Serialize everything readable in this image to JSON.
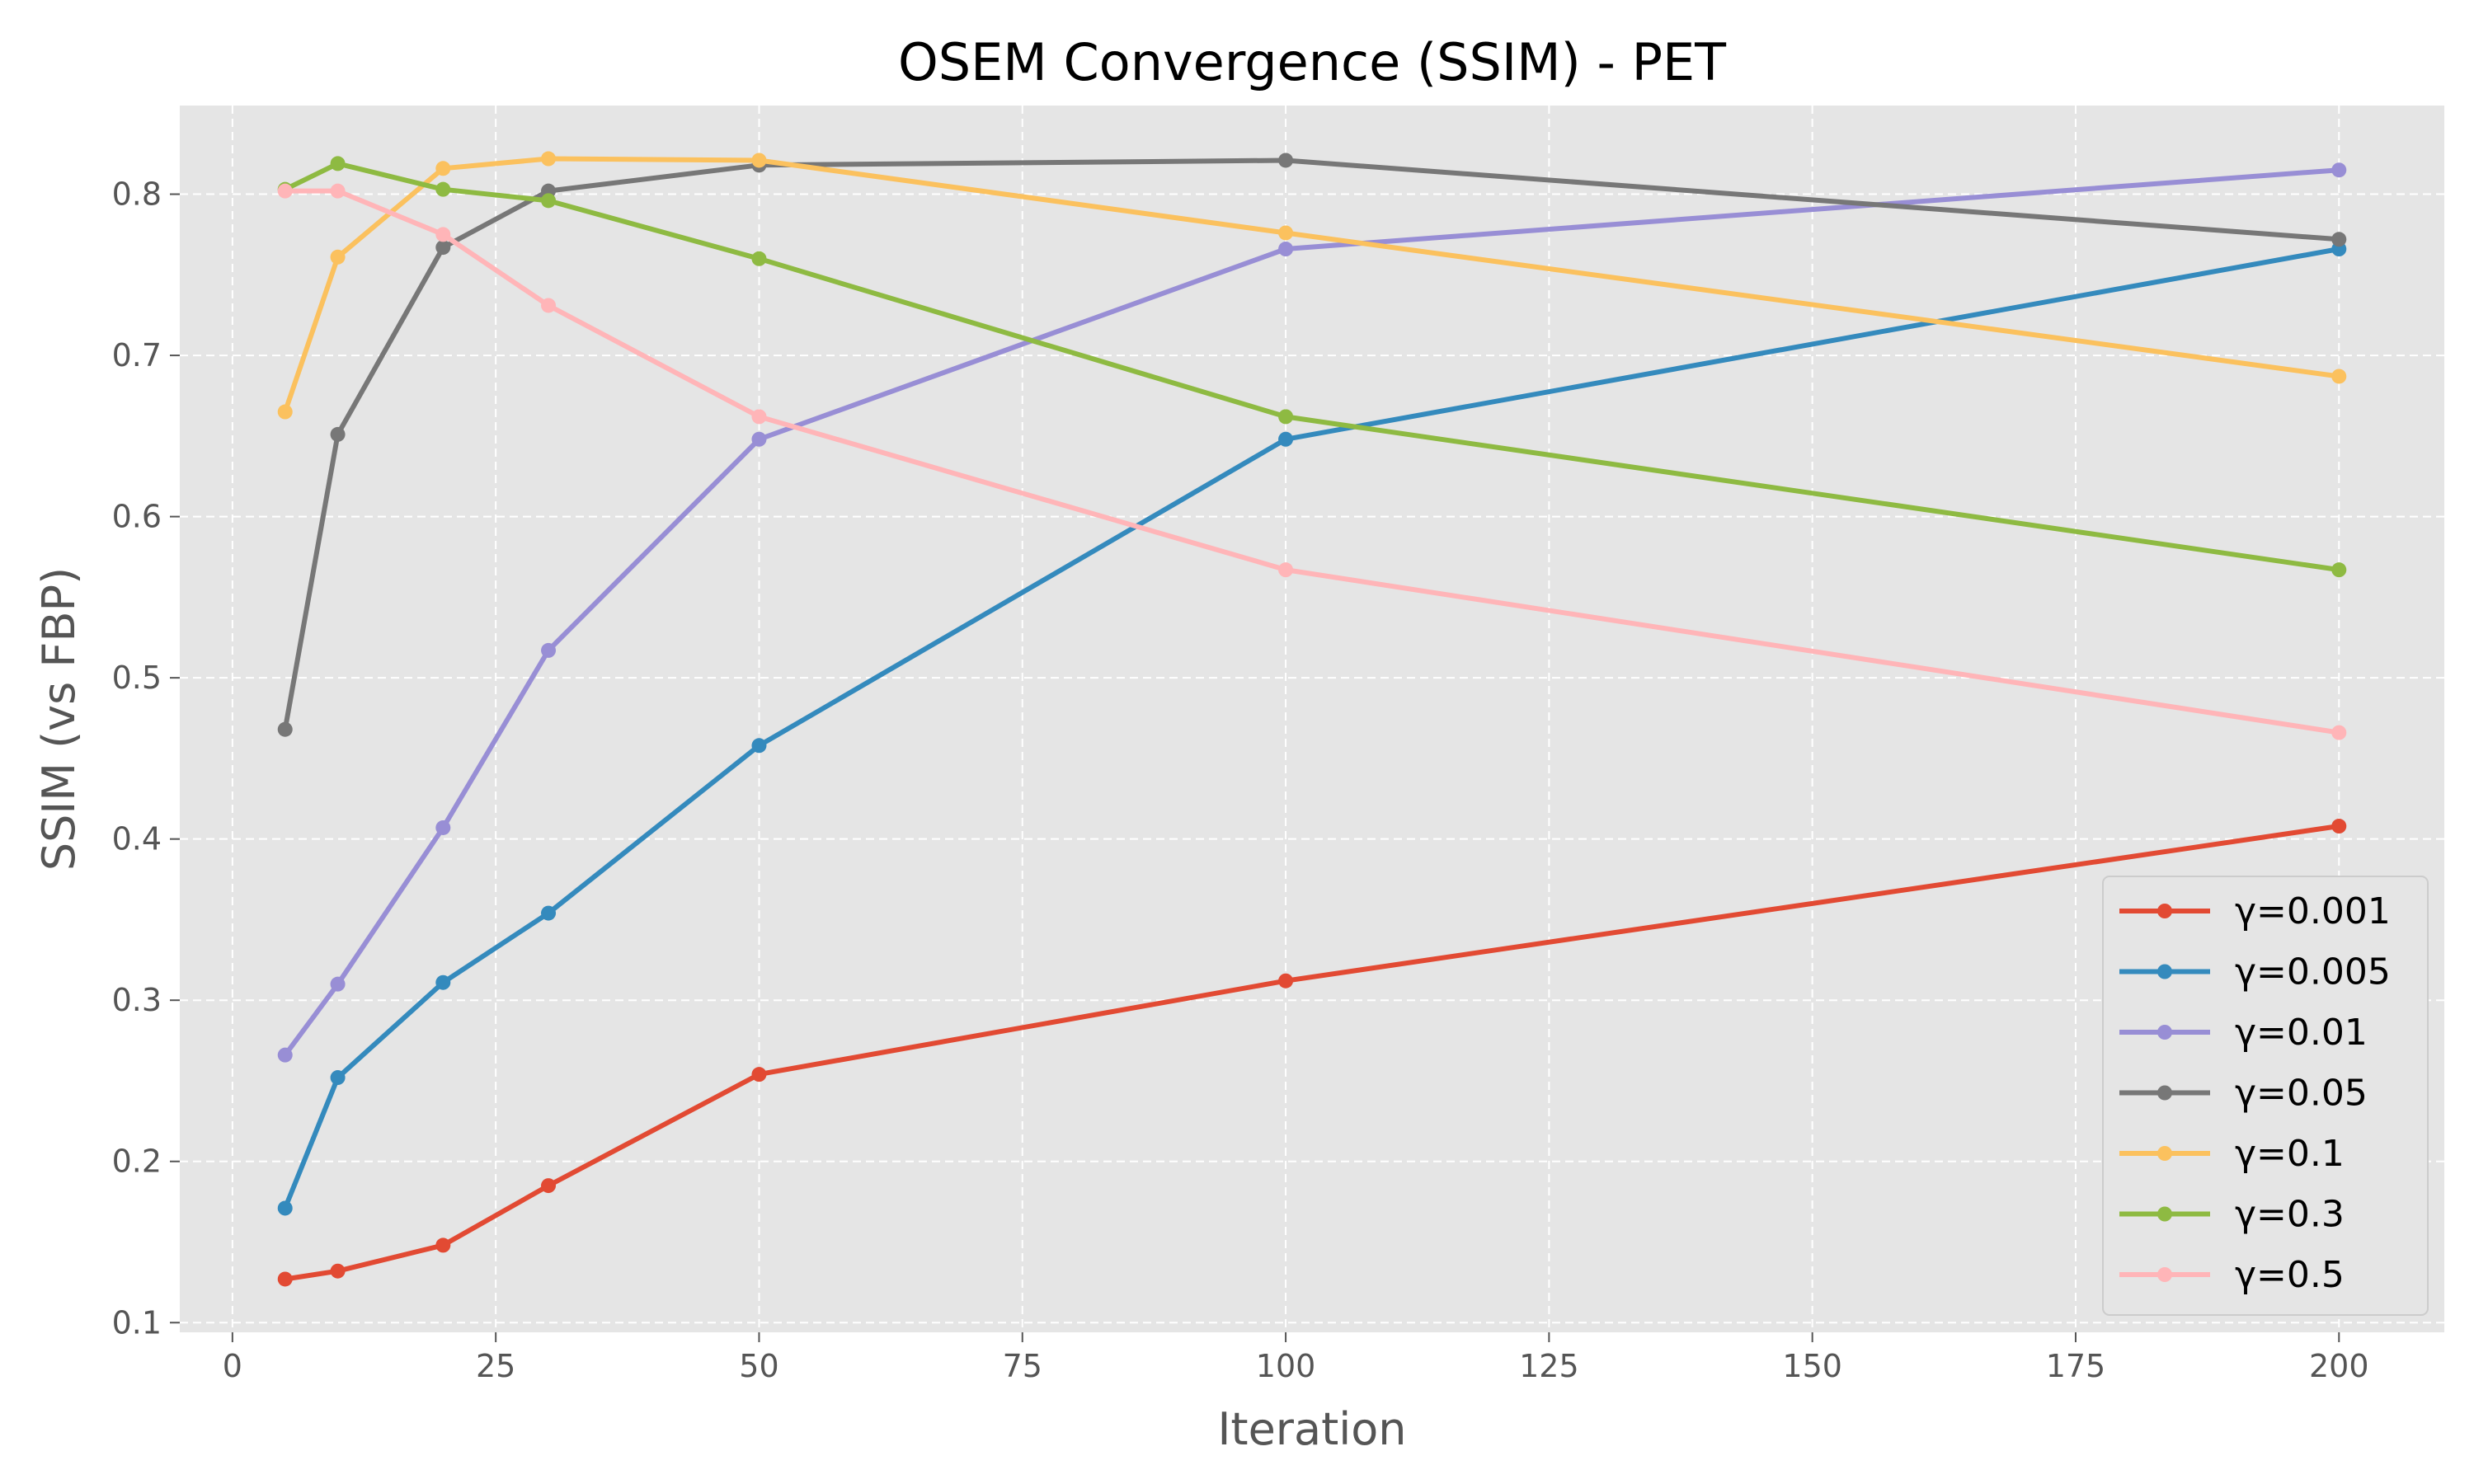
{
  "chart_data": {
    "type": "line",
    "title": "OSEM Convergence (SSIM) - PET",
    "xlabel": "Iteration",
    "ylabel": "SSIM (vs FBP)",
    "xlim": [
      -5,
      210
    ],
    "ylim": [
      0.094,
      0.855
    ],
    "xticks": [
      0,
      25,
      50,
      75,
      100,
      125,
      150,
      175,
      200
    ],
    "yticks": [
      0.1,
      0.2,
      0.3,
      0.4,
      0.5,
      0.6,
      0.7,
      0.8
    ],
    "grid": true,
    "legend_position": "lower-right",
    "x": [
      5,
      10,
      20,
      30,
      50,
      100,
      200
    ],
    "series": [
      {
        "name": "γ=0.001",
        "color": "#E24A33",
        "values": [
          0.127,
          0.132,
          0.148,
          0.185,
          0.254,
          0.312,
          0.408
        ]
      },
      {
        "name": "γ=0.005",
        "color": "#348ABD",
        "values": [
          0.171,
          0.252,
          0.311,
          0.354,
          0.458,
          0.648,
          0.766
        ]
      },
      {
        "name": "γ=0.01",
        "color": "#988ED5",
        "values": [
          0.266,
          0.31,
          0.407,
          0.517,
          0.648,
          0.766,
          0.815
        ]
      },
      {
        "name": "γ=0.05",
        "color": "#777777",
        "values": [
          0.468,
          0.651,
          0.767,
          0.802,
          0.818,
          0.821,
          0.772
        ]
      },
      {
        "name": "γ=0.1",
        "color": "#FBC15E",
        "values": [
          0.665,
          0.761,
          0.816,
          0.822,
          0.821,
          0.776,
          0.687
        ]
      },
      {
        "name": "γ=0.3",
        "color": "#8EBA42",
        "values": [
          0.803,
          0.819,
          0.803,
          0.796,
          0.76,
          0.662,
          0.567
        ]
      },
      {
        "name": "γ=0.5",
        "color": "#FFB5B8",
        "values": [
          0.802,
          0.802,
          0.775,
          0.731,
          0.662,
          0.567,
          0.466
        ]
      }
    ]
  },
  "colors": {
    "plot_background": "#E5E5E5",
    "grid": "#FFFFFF",
    "axis_text": "#555555"
  }
}
